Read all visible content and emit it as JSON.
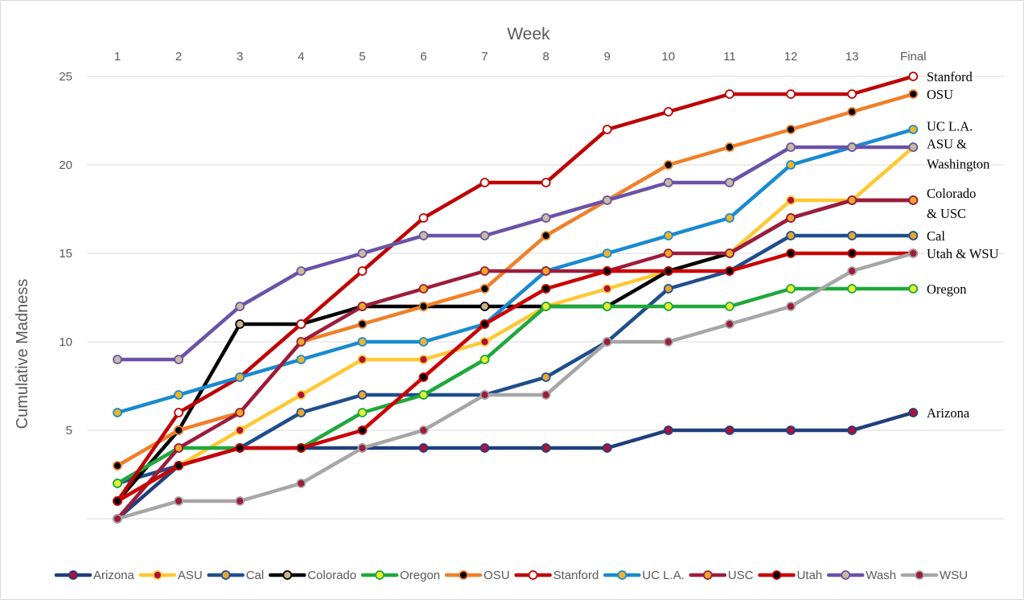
{
  "chart_data": {
    "type": "line",
    "xlabel": "Week",
    "ylabel": "Cumulative Madness",
    "categories": [
      "1",
      "2",
      "3",
      "4",
      "5",
      "6",
      "7",
      "8",
      "9",
      "10",
      "11",
      "12",
      "13",
      "Final"
    ],
    "y_ticks": [
      5,
      10,
      15,
      20,
      25
    ],
    "ylim": [
      0,
      25
    ],
    "grid": true,
    "legend": "bottom",
    "series": [
      {
        "name": "Arizona",
        "color": "#1f3f7a",
        "marker_fill": "#b0103a",
        "values": [
          0,
          3,
          4,
          4,
          4,
          4,
          4,
          4,
          4,
          5,
          5,
          5,
          5,
          6
        ]
      },
      {
        "name": "ASU",
        "color": "#ffc832",
        "marker_fill": "#b0103a",
        "values": [
          1,
          3,
          5,
          7,
          9,
          9,
          10,
          12,
          13,
          14,
          15,
          18,
          18,
          21
        ]
      },
      {
        "name": "Cal",
        "color": "#1f4e8c",
        "marker_fill": "#e6a830",
        "values": [
          2,
          3,
          4,
          6,
          7,
          7,
          7,
          8,
          10,
          13,
          14,
          16,
          16,
          16
        ]
      },
      {
        "name": "Colorado",
        "color": "#000000",
        "marker_fill": "#c8b48c",
        "values": [
          1,
          5,
          11,
          11,
          12,
          12,
          12,
          12,
          12,
          14,
          15,
          17,
          18,
          18
        ]
      },
      {
        "name": "Oregon",
        "color": "#1ea83c",
        "marker_fill": "#e6f032",
        "values": [
          2,
          4,
          4,
          4,
          6,
          7,
          9,
          12,
          12,
          12,
          12,
          13,
          13,
          13
        ]
      },
      {
        "name": "OSU",
        "color": "#f07f28",
        "marker_fill": "#000000",
        "values": [
          3,
          5,
          6,
          10,
          11,
          12,
          13,
          16,
          18,
          20,
          21,
          22,
          23,
          24
        ]
      },
      {
        "name": "Stanford",
        "color": "#c00000",
        "marker_fill": "#ffffff",
        "values": [
          1,
          6,
          8,
          11,
          14,
          17,
          19,
          19,
          22,
          23,
          24,
          24,
          24,
          25
        ]
      },
      {
        "name": "UC L.A.",
        "color": "#1a8ad0",
        "marker_fill": "#f0b42a",
        "values": [
          6,
          7,
          8,
          9,
          10,
          10,
          11,
          14,
          15,
          16,
          17,
          20,
          21,
          22
        ]
      },
      {
        "name": "USC",
        "color": "#9c1c3c",
        "marker_fill": "#f0a82a",
        "values": [
          0,
          4,
          6,
          10,
          12,
          13,
          14,
          14,
          14,
          15,
          15,
          17,
          18,
          18
        ]
      },
      {
        "name": "Utah",
        "color": "#cc0000",
        "marker_fill": "#000000",
        "values": [
          1,
          3,
          4,
          4,
          5,
          8,
          11,
          13,
          14,
          14,
          14,
          15,
          15,
          15
        ]
      },
      {
        "name": "Wash",
        "color": "#6a52a8",
        "marker_fill": "#c8bca0",
        "values": [
          9,
          9,
          12,
          14,
          15,
          16,
          16,
          17,
          18,
          19,
          19,
          21,
          21,
          21
        ]
      },
      {
        "name": "WSU",
        "color": "#a6a6a6",
        "marker_fill": "#9c1c3c",
        "values": [
          0,
          1,
          1,
          2,
          4,
          5,
          7,
          7,
          10,
          10,
          11,
          12,
          14,
          15
        ]
      }
    ],
    "annotations": [
      {
        "lines": [
          "Stanford"
        ],
        "y": 25
      },
      {
        "lines": [
          "OSU"
        ],
        "y": 24
      },
      {
        "lines": [
          "UC L.A."
        ],
        "y": 22.2
      },
      {
        "lines": [
          "ASU &",
          " Washington"
        ],
        "y": 21.2
      },
      {
        "lines": [
          "Colorado",
          " & USC"
        ],
        "y": 18.4
      },
      {
        "lines": [
          "Cal"
        ],
        "y": 16
      },
      {
        "lines": [
          "Utah & WSU"
        ],
        "y": 15
      },
      {
        "lines": [
          "Oregon"
        ],
        "y": 13
      },
      {
        "lines": [
          "Arizona"
        ],
        "y": 6
      }
    ]
  }
}
